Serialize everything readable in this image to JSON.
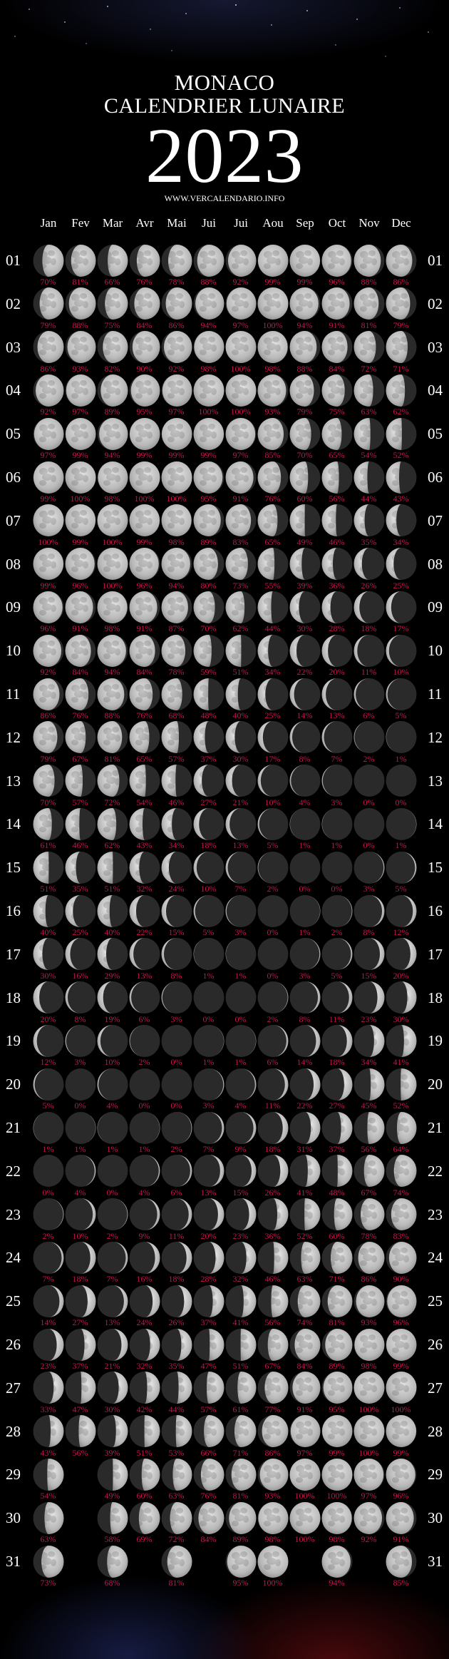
{
  "header": {
    "line1": "MONACO",
    "line2": "CALENDRIER LUNAIRE",
    "year": "2023",
    "website": "WWW.VERCALENDARIO.INFO"
  },
  "months": [
    "Jan",
    "Fev",
    "Mar",
    "Avr",
    "Mai",
    "Jui",
    "Jui",
    "Aou",
    "Sep",
    "Oct",
    "Nov",
    "Dec"
  ],
  "colors": {
    "percent": "#c41650",
    "moon_lit": "#c9c9c9",
    "moon_dark": "#2a2a2a",
    "background": "#000000"
  },
  "rows": [
    {
      "day": "01",
      "values": [
        "70%",
        "81%",
        "66%",
        "76%",
        "78%",
        "88%",
        "92%",
        "99%",
        "99%",
        "96%",
        "88%",
        "86%"
      ]
    },
    {
      "day": "02",
      "values": [
        "79%",
        "88%",
        "75%",
        "84%",
        "86%",
        "94%",
        "97%",
        "100%",
        "94%",
        "91%",
        "81%",
        "79%"
      ]
    },
    {
      "day": "03",
      "values": [
        "86%",
        "93%",
        "82%",
        "90%",
        "92%",
        "98%",
        "100%",
        "98%",
        "88%",
        "84%",
        "72%",
        "71%"
      ]
    },
    {
      "day": "04",
      "values": [
        "92%",
        "97%",
        "89%",
        "95%",
        "97%",
        "100%",
        "100%",
        "93%",
        "79%",
        "75%",
        "63%",
        "62%"
      ]
    },
    {
      "day": "05",
      "values": [
        "97%",
        "99%",
        "94%",
        "99%",
        "99%",
        "99%",
        "97%",
        "85%",
        "70%",
        "65%",
        "54%",
        "52%"
      ]
    },
    {
      "day": "06",
      "values": [
        "99%",
        "100%",
        "98%",
        "100%",
        "100%",
        "95%",
        "91%",
        "76%",
        "60%",
        "56%",
        "44%",
        "43%"
      ]
    },
    {
      "day": "07",
      "values": [
        "100%",
        "99%",
        "100%",
        "99%",
        "98%",
        "89%",
        "83%",
        "65%",
        "49%",
        "46%",
        "35%",
        "34%"
      ]
    },
    {
      "day": "08",
      "values": [
        "99%",
        "96%",
        "100%",
        "96%",
        "94%",
        "80%",
        "73%",
        "55%",
        "39%",
        "36%",
        "26%",
        "25%"
      ]
    },
    {
      "day": "09",
      "values": [
        "96%",
        "91%",
        "98%",
        "91%",
        "87%",
        "70%",
        "62%",
        "44%",
        "30%",
        "28%",
        "18%",
        "17%"
      ]
    },
    {
      "day": "10",
      "values": [
        "92%",
        "84%",
        "94%",
        "84%",
        "78%",
        "59%",
        "51%",
        "34%",
        "22%",
        "20%",
        "11%",
        "10%"
      ]
    },
    {
      "day": "11",
      "values": [
        "86%",
        "76%",
        "88%",
        "76%",
        "68%",
        "48%",
        "40%",
        "25%",
        "14%",
        "13%",
        "6%",
        "5%"
      ]
    },
    {
      "day": "12",
      "values": [
        "79%",
        "67%",
        "81%",
        "65%",
        "57%",
        "37%",
        "30%",
        "17%",
        "8%",
        "7%",
        "2%",
        "1%"
      ]
    },
    {
      "day": "13",
      "values": [
        "70%",
        "57%",
        "72%",
        "54%",
        "46%",
        "27%",
        "21%",
        "10%",
        "4%",
        "3%",
        "0%",
        "0%"
      ]
    },
    {
      "day": "14",
      "values": [
        "61%",
        "46%",
        "62%",
        "43%",
        "34%",
        "18%",
        "13%",
        "5%",
        "1%",
        "1%",
        "0%",
        "1%"
      ]
    },
    {
      "day": "15",
      "values": [
        "51%",
        "35%",
        "51%",
        "32%",
        "24%",
        "10%",
        "7%",
        "2%",
        "0%",
        "0%",
        "3%",
        "5%"
      ]
    },
    {
      "day": "16",
      "values": [
        "40%",
        "25%",
        "40%",
        "22%",
        "15%",
        "5%",
        "3%",
        "0%",
        "1%",
        "2%",
        "8%",
        "12%"
      ]
    },
    {
      "day": "17",
      "values": [
        "30%",
        "16%",
        "29%",
        "13%",
        "8%",
        "1%",
        "1%",
        "0%",
        "3%",
        "5%",
        "15%",
        "20%"
      ]
    },
    {
      "day": "18",
      "values": [
        "20%",
        "8%",
        "19%",
        "6%",
        "3%",
        "0%",
        "0%",
        "2%",
        "8%",
        "11%",
        "23%",
        "30%"
      ]
    },
    {
      "day": "19",
      "values": [
        "12%",
        "3%",
        "10%",
        "2%",
        "0%",
        "1%",
        "1%",
        "6%",
        "14%",
        "18%",
        "34%",
        "41%"
      ]
    },
    {
      "day": "20",
      "values": [
        "5%",
        "0%",
        "4%",
        "0%",
        "0%",
        "3%",
        "4%",
        "11%",
        "22%",
        "27%",
        "45%",
        "52%"
      ]
    },
    {
      "day": "21",
      "values": [
        "1%",
        "1%",
        "1%",
        "1%",
        "2%",
        "7%",
        "9%",
        "18%",
        "31%",
        "37%",
        "56%",
        "64%"
      ]
    },
    {
      "day": "22",
      "values": [
        "0%",
        "4%",
        "0%",
        "4%",
        "6%",
        "13%",
        "15%",
        "26%",
        "41%",
        "48%",
        "67%",
        "74%"
      ]
    },
    {
      "day": "23",
      "values": [
        "2%",
        "10%",
        "2%",
        "9%",
        "11%",
        "20%",
        "23%",
        "36%",
        "52%",
        "60%",
        "78%",
        "83%"
      ]
    },
    {
      "day": "24",
      "values": [
        "7%",
        "18%",
        "7%",
        "16%",
        "18%",
        "28%",
        "32%",
        "46%",
        "63%",
        "71%",
        "86%",
        "90%"
      ]
    },
    {
      "day": "25",
      "values": [
        "14%",
        "27%",
        "13%",
        "24%",
        "26%",
        "37%",
        "41%",
        "56%",
        "74%",
        "81%",
        "93%",
        "96%"
      ]
    },
    {
      "day": "26",
      "values": [
        "23%",
        "37%",
        "21%",
        "32%",
        "35%",
        "47%",
        "51%",
        "67%",
        "84%",
        "89%",
        "98%",
        "99%"
      ]
    },
    {
      "day": "27",
      "values": [
        "33%",
        "47%",
        "30%",
        "42%",
        "44%",
        "57%",
        "61%",
        "77%",
        "91%",
        "95%",
        "100%",
        "100%"
      ]
    },
    {
      "day": "28",
      "values": [
        "43%",
        "56%",
        "39%",
        "51%",
        "53%",
        "66%",
        "71%",
        "86%",
        "97%",
        "99%",
        "100%",
        "99%"
      ]
    },
    {
      "day": "29",
      "values": [
        "54%",
        null,
        "49%",
        "60%",
        "63%",
        "76%",
        "81%",
        "93%",
        "100%",
        "100%",
        "97%",
        "96%"
      ]
    },
    {
      "day": "30",
      "values": [
        "63%",
        null,
        "58%",
        "69%",
        "72%",
        "84%",
        "89%",
        "98%",
        "100%",
        "98%",
        "92%",
        "91%"
      ]
    },
    {
      "day": "31",
      "values": [
        "73%",
        null,
        "68%",
        null,
        "81%",
        null,
        "95%",
        "100%",
        null,
        "94%",
        null,
        "85%"
      ]
    }
  ]
}
